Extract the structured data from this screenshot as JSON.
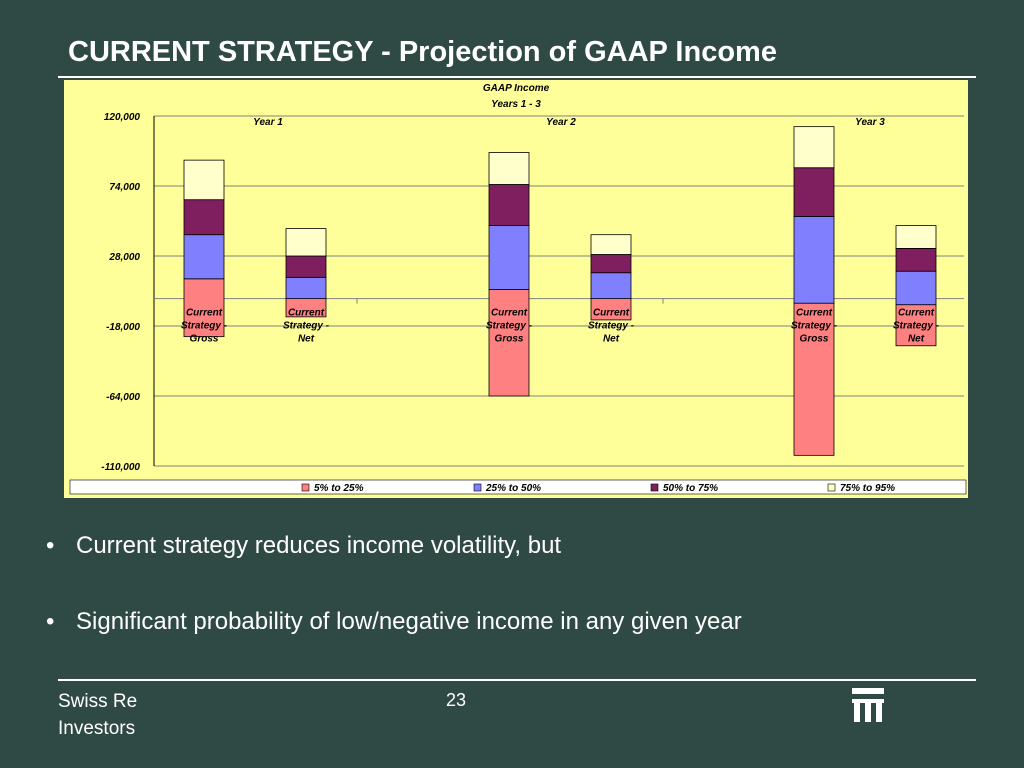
{
  "slide": {
    "title": "CURRENT STRATEGY - Projection of GAAP Income",
    "bullets": [
      "Current strategy reduces income volatility, but",
      "Significant probability of low/negative income in any given year"
    ],
    "footer_text": "Swiss Re Investors",
    "page_number": "23",
    "logo_icon": "swiss-re-logo-icon"
  },
  "chart_data": {
    "type": "bar",
    "stacked": "floating-percentile-bands",
    "title": "GAAP Income",
    "subtitle": "Years 1 - 3",
    "xlabel": "",
    "ylabel": "",
    "ylim": [
      -110000,
      120000
    ],
    "yticks": [
      "120,000",
      "74,000",
      "28,000",
      "-18,000",
      "-64,000",
      "-110,000"
    ],
    "ytick_values": [
      120000,
      74000,
      28000,
      -18000,
      -64000,
      -110000
    ],
    "grid": true,
    "background": "#ffff99",
    "legend_position": "bottom",
    "groups": [
      {
        "label": "Year 1",
        "categories": [
          "Current Strategy - Gross",
          "Current Strategy - Net"
        ]
      },
      {
        "label": "Year 2",
        "categories": [
          "Current Strategy - Gross",
          "Current Strategy - Net"
        ]
      },
      {
        "label": "Year 3",
        "categories": [
          "Current Strategy - Gross",
          "Current Strategy - Net"
        ]
      }
    ],
    "categories": [
      "Current Strategy - Gross",
      "Current Strategy - Net",
      "Current Strategy - Gross",
      "Current Strategy - Net",
      "Current Strategy - Gross",
      "Current Strategy - Net"
    ],
    "series": [
      {
        "name": "5% to 25%",
        "color": "#ff8080",
        "ranges": [
          [
            -25000,
            13000
          ],
          [
            -12000,
            0
          ],
          [
            -64000,
            6000
          ],
          [
            -14000,
            0
          ],
          [
            -103000,
            -3000
          ],
          [
            -31000,
            -4000
          ]
        ]
      },
      {
        "name": "25% to 50%",
        "color": "#8080ff",
        "ranges": [
          [
            13000,
            42000
          ],
          [
            0,
            14000
          ],
          [
            6000,
            48000
          ],
          [
            0,
            17000
          ],
          [
            -3000,
            54000
          ],
          [
            -4000,
            18000
          ]
        ]
      },
      {
        "name": "50% to 75%",
        "color": "#7f1f5f",
        "ranges": [
          [
            42000,
            65000
          ],
          [
            14000,
            28000
          ],
          [
            48000,
            75000
          ],
          [
            17000,
            29000
          ],
          [
            54000,
            86000
          ],
          [
            18000,
            33000
          ]
        ]
      },
      {
        "name": "75% to 95%",
        "color": "#ffffcc",
        "ranges": [
          [
            65000,
            91000
          ],
          [
            28000,
            46000
          ],
          [
            75000,
            96000
          ],
          [
            29000,
            42000
          ],
          [
            86000,
            113000
          ],
          [
            33000,
            48000
          ]
        ]
      }
    ]
  }
}
